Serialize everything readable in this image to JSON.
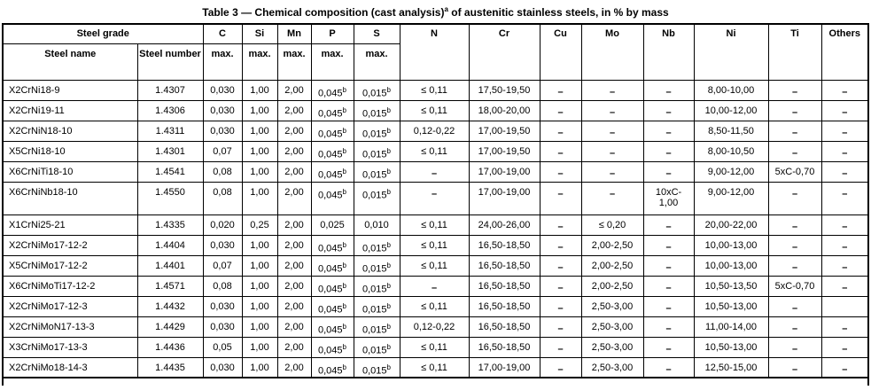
{
  "title": "Table 3 — Chemical composition (cast analysis)^a of austenitic stainless steels, in % by mass",
  "header": {
    "steel_grade": "Steel grade",
    "steel_name": "Steel name",
    "steel_number": "Steel number",
    "max_label": "max.",
    "elements_max": [
      "C",
      "Si",
      "Mn",
      "P",
      "S"
    ],
    "elements_range": [
      "N",
      "Cr",
      "Cu",
      "Mo",
      "Nb",
      "Ni",
      "Ti",
      "Others"
    ]
  },
  "rows": [
    {
      "name": "X2CrNi18-9",
      "number": "1.4307",
      "cells": [
        "0,030",
        "1,00",
        "2,00",
        "0,045^b",
        "0,015^b",
        "≤ 0,11",
        "17,50-19,50",
        "–",
        "–",
        "–",
        "8,00-10,00",
        "–",
        "–"
      ]
    },
    {
      "name": "X2CrNi19-11",
      "number": "1.4306",
      "cells": [
        "0,030",
        "1,00",
        "2,00",
        "0,045^b",
        "0,015^b",
        "≤ 0,11",
        "18,00-20,00",
        "–",
        "–",
        "–",
        "10,00-12,00",
        "–",
        "–"
      ]
    },
    {
      "name": "X2CrNiN18-10",
      "number": "1.4311",
      "cells": [
        "0,030",
        "1,00",
        "2,00",
        "0,045^b",
        "0,015^b",
        "0,12-0,22",
        "17,00-19,50",
        "–",
        "–",
        "–",
        "8,50-11,50",
        "–",
        "–"
      ]
    },
    {
      "name": "X5CrNi18-10",
      "number": "1.4301",
      "cells": [
        "0,07",
        "1,00",
        "2,00",
        "0,045^b",
        "0,015^b",
        "≤ 0,11",
        "17,00-19,50",
        "–",
        "–",
        "–",
        "8,00-10,50",
        "–",
        "–"
      ]
    },
    {
      "name": "X6CrNiTi18-10",
      "number": "1.4541",
      "cells": [
        "0,08",
        "1,00",
        "2,00",
        "0,045^b",
        "0,015^b",
        "–",
        "17,00-19,00",
        "–",
        "–",
        "–",
        "9,00-12,00",
        "5xC-0,70",
        "–"
      ]
    },
    {
      "name": "X6CrNiNb18-10",
      "number": "1.4550",
      "tall": true,
      "cells": [
        "0,08",
        "1,00",
        "2,00",
        "0,045^b",
        "0,015^b",
        "–",
        "17,00-19,00",
        "–",
        "–",
        "10xC-\n1,00",
        "9,00-12,00",
        "–",
        "–"
      ]
    },
    {
      "name": "X1CrNi25-21",
      "number": "1.4335",
      "cells": [
        "0,020",
        "0,25",
        "2,00",
        "0,025",
        "0,010",
        "≤ 0,11",
        "24,00-26,00",
        "–",
        "≤ 0,20",
        "–",
        "20,00-22,00",
        "–",
        "–"
      ]
    },
    {
      "name": "X2CrNiMo17-12-2",
      "number": "1.4404",
      "cells": [
        "0,030",
        "1,00",
        "2,00",
        "0,045^b",
        "0,015^b",
        "≤ 0,11",
        "16,50-18,50",
        "–",
        "2,00-2,50",
        "–",
        "10,00-13,00",
        "–",
        "–"
      ]
    },
    {
      "name": "X5CrNiMo17-12-2",
      "number": "1.4401",
      "cells": [
        "0,07",
        "1,00",
        "2,00",
        "0,045^b",
        "0,015^b",
        "≤ 0,11",
        "16,50-18,50",
        "–",
        "2,00-2,50",
        "–",
        "10,00-13,00",
        "–",
        "–"
      ]
    },
    {
      "name": "X6CrNiMoTi17-12-2",
      "number": "1.4571",
      "cells": [
        "0,08",
        "1,00",
        "2,00",
        "0,045^b",
        "0,015^b",
        "–",
        "16,50-18,50",
        "–",
        "2,00-2,50",
        "–",
        "10,50-13,50",
        "5xC-0,70",
        "–"
      ]
    },
    {
      "name": "X2CrNiMo17-12-3",
      "number": "1.4432",
      "cells": [
        "0,030",
        "1,00",
        "2,00",
        "0,045^b",
        "0,015^b",
        "≤ 0,11",
        "16,50-18,50",
        "–",
        "2,50-3,00",
        "–",
        "10,50-13,00",
        "–",
        ""
      ]
    },
    {
      "name": "X2CrNiMoN17-13-3",
      "number": "1.4429",
      "cells": [
        "0,030",
        "1,00",
        "2,00",
        "0,045^b",
        "0,015^b",
        "0,12-0,22",
        "16,50-18,50",
        "–",
        "2,50-3,00",
        "–",
        "11,00-14,00",
        "–",
        "–"
      ]
    },
    {
      "name": "X3CrNiMo17-13-3",
      "number": "1.4436",
      "cells": [
        "0,05",
        "1,00",
        "2,00",
        "0,045^b",
        "0,015^b",
        "≤ 0,11",
        "16,50-18,50",
        "–",
        "2,50-3,00",
        "–",
        "10,50-13,00",
        "–",
        "–"
      ]
    },
    {
      "name": "X2CrNiMo18-14-3",
      "number": "1.4435",
      "cells": [
        "0,030",
        "1,00",
        "2,00",
        "0,045^b",
        "0,015^b",
        "≤ 0,11",
        "17,00-19,00",
        "–",
        "2,50-3,00",
        "–",
        "12,50-15,00",
        "–",
        "–"
      ]
    }
  ]
}
